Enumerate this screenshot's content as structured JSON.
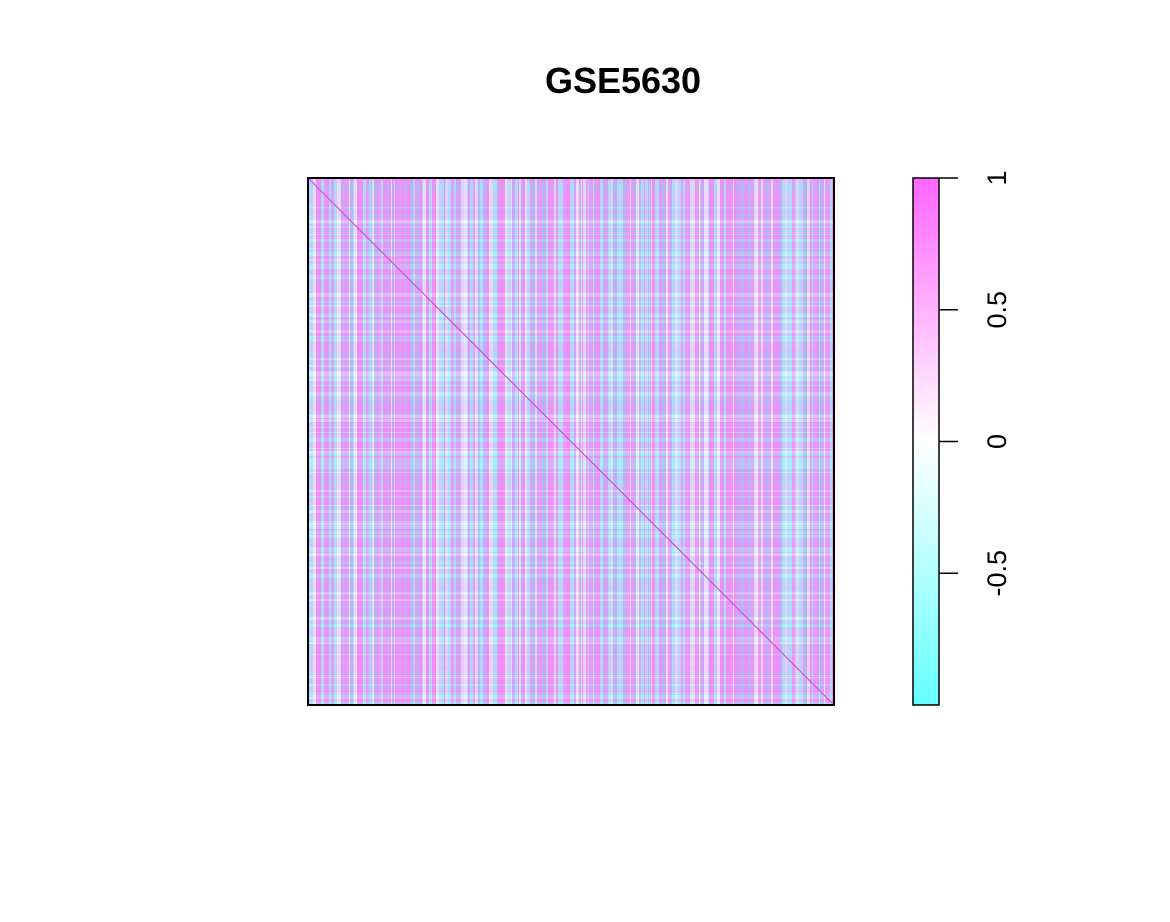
{
  "chart_data": {
    "type": "heatmap",
    "title": "GSE5630",
    "matrix_description": "correlation matrix heatmap with unit diagonal; rows/columns unlabeled",
    "diagonal_value": 1,
    "value_range": [
      -1,
      1
    ],
    "colorbar": {
      "ticks": [
        {
          "value": 1,
          "label": "1"
        },
        {
          "value": 0.5,
          "label": "0.5"
        },
        {
          "value": 0,
          "label": "0"
        },
        {
          "value": -0.5,
          "label": "-0.5"
        }
      ],
      "colors": {
        "low": "#66ffff",
        "mid": "#ffffff",
        "high": "#ff66ff"
      }
    },
    "axes_ticks_shown": false,
    "legend_position": "right"
  }
}
